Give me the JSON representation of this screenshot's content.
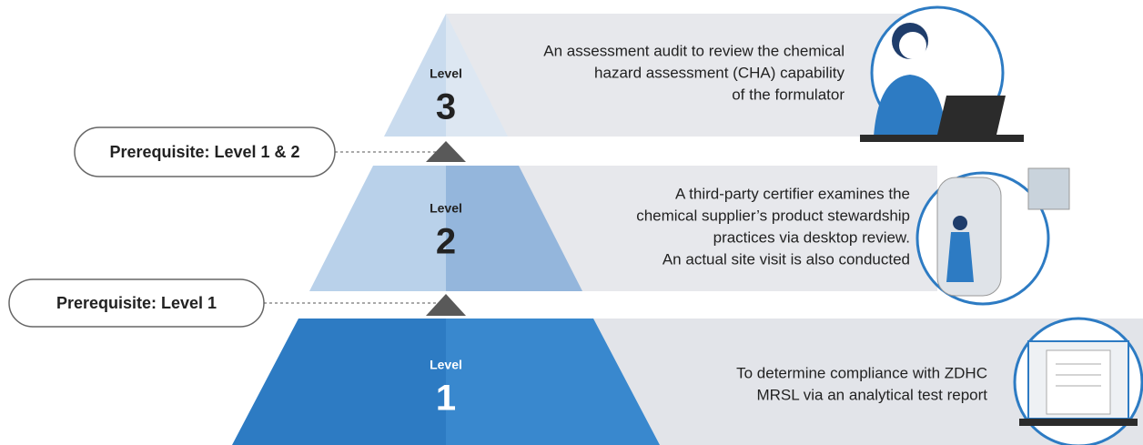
{
  "levels": [
    {
      "label": "Level",
      "number": "3",
      "description": [
        "An assessment audit to review the chemical",
        "hazard assessment (CHA) capability",
        "of the formulator"
      ]
    },
    {
      "label": "Level",
      "number": "2",
      "description": [
        "A third-party certifier examines the",
        "chemical supplier’s product stewardship",
        "practices via desktop review.",
        "An actual site visit is also conducted"
      ]
    },
    {
      "label": "Level",
      "number": "1",
      "description": [
        "To determine compliance with ZDHC",
        "MRSL via an analytical test report"
      ]
    }
  ],
  "prerequisites": [
    {
      "label": "Prerequisite: Level 1 & 2"
    },
    {
      "label": "Prerequisite: Level 1"
    }
  ]
}
